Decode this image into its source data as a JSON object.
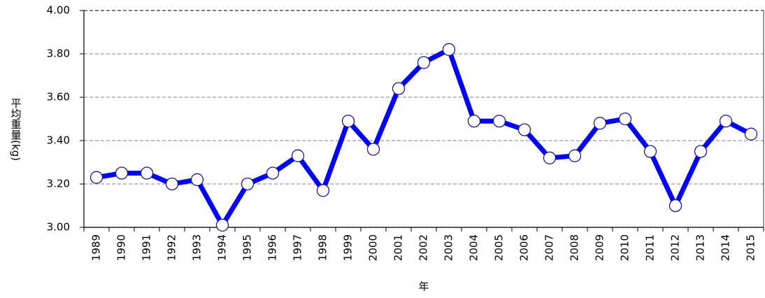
{
  "chart_data": {
    "type": "line",
    "y_label": "平均重量(kg)",
    "x_label": "年",
    "categories": [
      "1989",
      "1990",
      "1991",
      "1992",
      "1993",
      "1994",
      "1995",
      "1996",
      "1997",
      "1998",
      "1999",
      "2000",
      "2001",
      "2002",
      "2003",
      "2004",
      "2005",
      "2006",
      "2007",
      "2008",
      "2009",
      "2010",
      "2011",
      "2012",
      "2013",
      "2014",
      "2015"
    ],
    "series": [
      {
        "color": "#0000ff",
        "values": [
          3.23,
          3.25,
          3.25,
          3.2,
          3.22,
          3.01,
          3.2,
          3.25,
          3.33,
          3.17,
          3.49,
          3.36,
          3.64,
          3.76,
          3.82,
          3.49,
          3.49,
          3.45,
          3.32,
          3.33,
          3.48,
          3.5,
          3.35,
          3.1,
          3.35,
          3.49,
          3.43
        ]
      }
    ],
    "ylim": [
      3.0,
      4.0
    ],
    "yticks": [
      {
        "value": 3.0,
        "label": "3.00"
      },
      {
        "value": 3.2,
        "label": "3.20"
      },
      {
        "value": 3.4,
        "label": "3.40"
      },
      {
        "value": 3.6,
        "label": "3.60"
      },
      {
        "value": 3.8,
        "label": "3.80"
      },
      {
        "value": 4.0,
        "label": "4.00"
      }
    ],
    "grid": true
  }
}
